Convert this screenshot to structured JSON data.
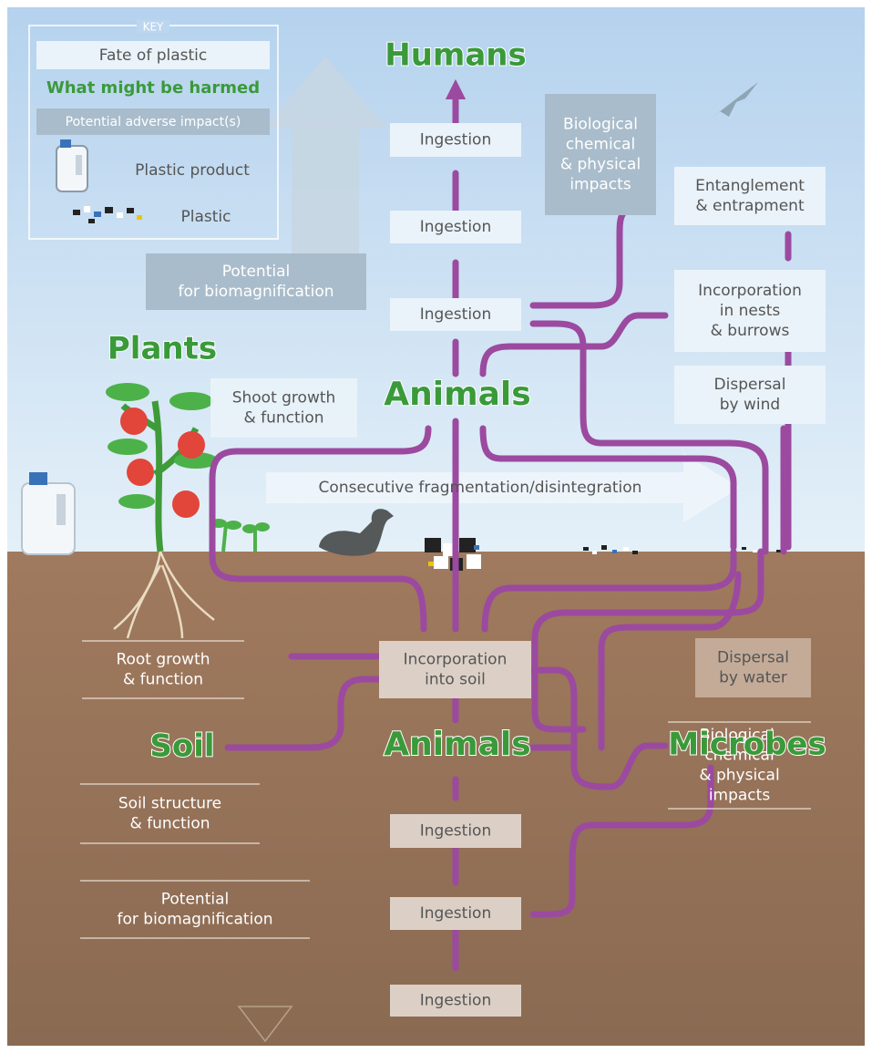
{
  "key": {
    "title": "KEY",
    "fate": "Fate of plastic",
    "harmed": "What might be harmed",
    "impact": "Potential adverse impact(s)",
    "product": "Plastic product",
    "plastic": "Plastic"
  },
  "harmed": [
    {
      "label": "Humans"
    },
    {
      "label": "Plants"
    },
    {
      "label": "Animals"
    },
    {
      "label": "Soil"
    },
    {
      "label": "Animals"
    },
    {
      "label": "Microbes"
    }
  ],
  "fate": [
    {
      "lines": [
        "Ingestion"
      ]
    },
    {
      "lines": [
        "Ingestion"
      ]
    },
    {
      "lines": [
        "Ingestion"
      ]
    },
    {
      "lines": [
        "Entanglement",
        "& entrapment"
      ]
    },
    {
      "lines": [
        "Incorporation",
        "in nests",
        "& burrows"
      ]
    },
    {
      "lines": [
        "Dispersal",
        "by wind"
      ]
    },
    {
      "lines": [
        "Consecutive fragmentation/disintegration"
      ]
    },
    {
      "lines": [
        "Incorporation",
        "into soil"
      ]
    },
    {
      "lines": [
        "Dispersal",
        "by water"
      ]
    },
    {
      "lines": [
        "Ingestion"
      ]
    },
    {
      "lines": [
        "Ingestion"
      ]
    },
    {
      "lines": [
        "Ingestion"
      ]
    }
  ],
  "impacts": [
    {
      "lines": [
        "Biological",
        "chemical",
        "& physical",
        "impacts"
      ]
    },
    {
      "lines": [
        "Potential",
        "for biomagnification"
      ]
    },
    {
      "lines": [
        "Shoot growth",
        "& function"
      ]
    },
    {
      "lines": [
        "Root growth",
        "& function"
      ]
    },
    {
      "lines": [
        "Soil structure",
        "& function"
      ]
    },
    {
      "lines": [
        "Potential",
        "for biomagnification"
      ]
    },
    {
      "lines": [
        "Biological,",
        "chemical",
        "& physical",
        "impacts"
      ]
    }
  ]
}
